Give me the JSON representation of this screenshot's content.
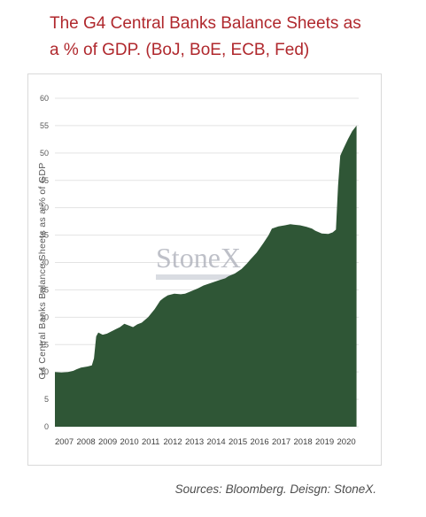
{
  "header": {
    "title_line1": "The G4 Central Banks Balance Sheets as",
    "title_line2": "a % of GDP. (BoJ, BoE, ECB, Fed)"
  },
  "footer": {
    "source": "Sources: Bloomberg. Deisgn: StoneX."
  },
  "watermark": {
    "text": "StoneX"
  },
  "colors": {
    "area": "#2f5636",
    "title": "#b0282d",
    "gridline": "#e3e3e3"
  },
  "chart_data": {
    "type": "area",
    "title": "The G4 Central Banks Balance Sheets as a % of GDP. (BoJ, BoE, ECB, Fed)",
    "xlabel": "",
    "ylabel": "G4 Central Banks Balance Sheets as a % of GDP",
    "ylim": [
      0,
      60
    ],
    "yticks": [
      0,
      5,
      10,
      15,
      20,
      25,
      30,
      35,
      40,
      45,
      50,
      55,
      60
    ],
    "xlim": [
      2007.0,
      2021.0
    ],
    "xticks": [
      "2007",
      "2008",
      "2009",
      "2010",
      "2011",
      "2012",
      "2013",
      "2014",
      "2015",
      "2016",
      "2017",
      "2018",
      "2019",
      "2020"
    ],
    "grid": true,
    "legend": "none",
    "series": [
      {
        "x": [
          2007.0,
          2007.3,
          2007.6,
          2007.85,
          2008.0,
          2008.2,
          2008.5,
          2008.7,
          2008.8,
          2008.9,
          2009.0,
          2009.2,
          2009.4,
          2009.6,
          2009.8,
          2010.0,
          2010.2,
          2010.4,
          2010.6,
          2010.8,
          2011.0,
          2011.3,
          2011.6,
          2011.85,
          2012.0,
          2012.2,
          2012.5,
          2012.8,
          2013.0,
          2013.3,
          2013.6,
          2013.85,
          2014.0,
          2014.3,
          2014.6,
          2014.85,
          2015.0,
          2015.3,
          2015.6,
          2015.85,
          2016.0,
          2016.3,
          2016.6,
          2016.85,
          2017.0,
          2017.3,
          2017.6,
          2017.85,
          2018.0,
          2018.3,
          2018.6,
          2018.85,
          2019.0,
          2019.3,
          2019.6,
          2019.8,
          2019.95,
          2020.05,
          2020.15,
          2020.3,
          2020.5,
          2020.7,
          2020.9
        ],
        "values": [
          10.0,
          9.9,
          10.0,
          10.2,
          10.5,
          10.8,
          11.0,
          11.2,
          12.5,
          16.5,
          17.2,
          16.8,
          17.0,
          17.4,
          17.8,
          18.2,
          18.8,
          18.5,
          18.2,
          18.7,
          19.0,
          20.0,
          21.5,
          23.0,
          23.5,
          24.0,
          24.3,
          24.2,
          24.3,
          24.8,
          25.3,
          25.8,
          26.0,
          26.4,
          26.8,
          27.1,
          27.5,
          28.0,
          28.8,
          29.8,
          30.5,
          31.8,
          33.5,
          35.0,
          36.2,
          36.6,
          36.8,
          37.0,
          36.9,
          36.8,
          36.5,
          36.2,
          35.8,
          35.3,
          35.2,
          35.5,
          36.0,
          44.0,
          49.5,
          50.8,
          52.5,
          54.0,
          55.0
        ]
      }
    ]
  }
}
